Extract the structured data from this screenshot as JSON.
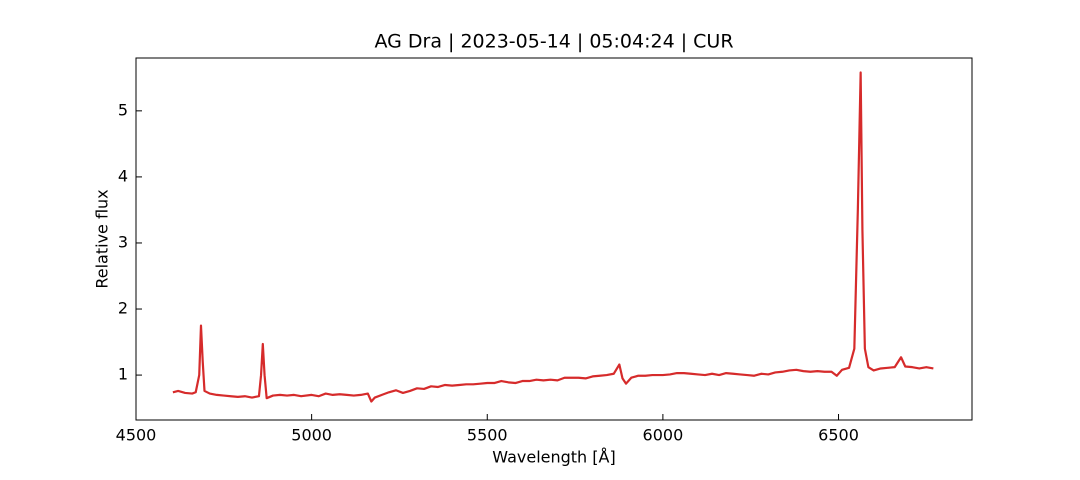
{
  "chart_data": {
    "type": "line",
    "title": "AG Dra | 2023-05-14 | 05:04:24 | CUR",
    "xlabel": "Wavelength [Å]",
    "ylabel": "Relative flux",
    "x": [
      4605,
      4620,
      4640,
      4660,
      4670,
      4680,
      4685,
      4690,
      4695,
      4710,
      4730,
      4750,
      4770,
      4790,
      4810,
      4830,
      4850,
      4856,
      4861,
      4866,
      4872,
      4890,
      4910,
      4930,
      4950,
      4970,
      5000,
      5020,
      5040,
      5060,
      5080,
      5100,
      5120,
      5140,
      5160,
      5170,
      5180,
      5200,
      5220,
      5240,
      5260,
      5280,
      5300,
      5320,
      5340,
      5360,
      5380,
      5400,
      5420,
      5440,
      5460,
      5480,
      5500,
      5520,
      5540,
      5560,
      5580,
      5600,
      5620,
      5640,
      5660,
      5680,
      5700,
      5720,
      5740,
      5760,
      5780,
      5800,
      5820,
      5840,
      5860,
      5876,
      5885,
      5895,
      5910,
      5930,
      5950,
      5970,
      6000,
      6020,
      6040,
      6060,
      6080,
      6100,
      6120,
      6140,
      6160,
      6180,
      6200,
      6220,
      6240,
      6260,
      6280,
      6300,
      6320,
      6340,
      6360,
      6380,
      6400,
      6420,
      6440,
      6460,
      6480,
      6495,
      6510,
      6530,
      6545,
      6555,
      6563,
      6568,
      6575,
      6585,
      6600,
      6620,
      6640,
      6660,
      6678,
      6690,
      6710,
      6730,
      6750,
      6770
    ],
    "series": [
      {
        "name": "flux",
        "color": "#d62b2b",
        "values": [
          0.74,
          0.76,
          0.73,
          0.72,
          0.74,
          1.0,
          1.75,
          1.2,
          0.76,
          0.72,
          0.7,
          0.69,
          0.68,
          0.67,
          0.68,
          0.66,
          0.68,
          1.0,
          1.47,
          1.0,
          0.65,
          0.69,
          0.7,
          0.69,
          0.7,
          0.68,
          0.7,
          0.68,
          0.72,
          0.7,
          0.71,
          0.7,
          0.69,
          0.7,
          0.72,
          0.6,
          0.66,
          0.7,
          0.74,
          0.77,
          0.73,
          0.76,
          0.8,
          0.79,
          0.83,
          0.82,
          0.85,
          0.84,
          0.85,
          0.86,
          0.86,
          0.87,
          0.88,
          0.88,
          0.91,
          0.89,
          0.88,
          0.91,
          0.91,
          0.93,
          0.92,
          0.93,
          0.92,
          0.96,
          0.96,
          0.96,
          0.95,
          0.98,
          0.99,
          1.0,
          1.02,
          1.16,
          0.95,
          0.87,
          0.96,
          0.99,
          0.99,
          1.0,
          1.0,
          1.01,
          1.03,
          1.03,
          1.02,
          1.01,
          1.0,
          1.02,
          1.0,
          1.03,
          1.02,
          1.01,
          1.0,
          0.99,
          1.02,
          1.01,
          1.04,
          1.05,
          1.07,
          1.08,
          1.06,
          1.05,
          1.06,
          1.05,
          1.05,
          0.99,
          1.08,
          1.11,
          1.4,
          3.5,
          5.58,
          3.2,
          1.4,
          1.12,
          1.07,
          1.1,
          1.11,
          1.12,
          1.27,
          1.13,
          1.12,
          1.1,
          1.12,
          1.1
        ]
      }
    ],
    "xlim": [
      4500,
      6880
    ],
    "ylim": [
      0.32,
      5.8
    ],
    "xticks": [
      4500,
      5000,
      5500,
      6000,
      6500
    ],
    "yticks": [
      1,
      2,
      3,
      4,
      5
    ]
  }
}
